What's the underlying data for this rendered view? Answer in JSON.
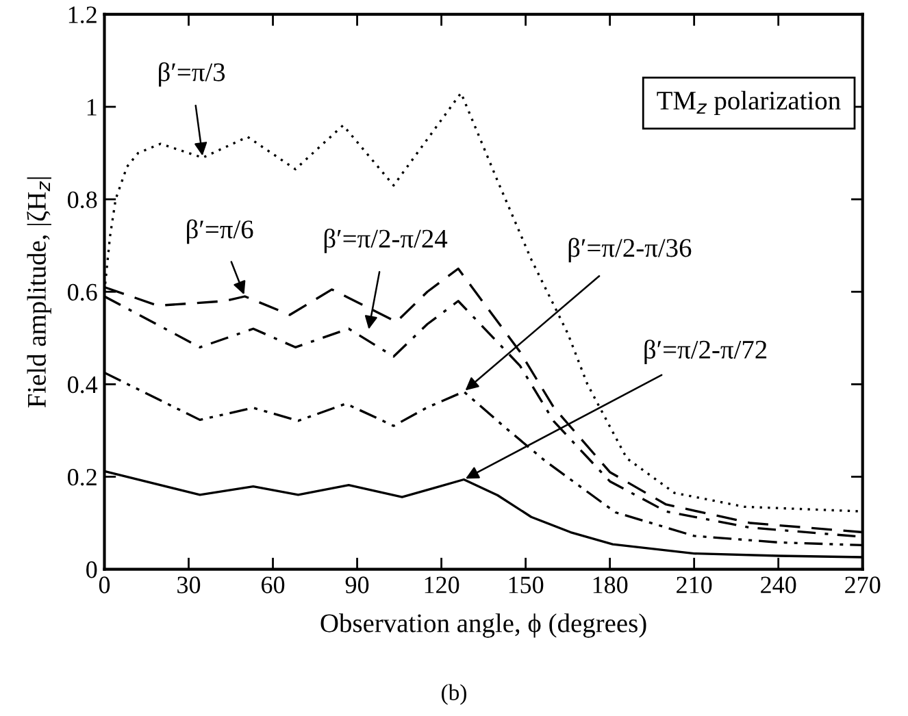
{
  "chart_data": {
    "type": "line",
    "xlabel": "Observation angle, ϕ (degrees)",
    "ylabel": "Field amplitude, |ζH$_{z}$|",
    "xlim": [
      0,
      270
    ],
    "ylim": [
      0,
      1.2
    ],
    "xticks": [
      0,
      30,
      60,
      90,
      120,
      150,
      180,
      210,
      240,
      270
    ],
    "yticks": [
      0,
      0.2,
      0.4,
      0.6,
      0.8,
      1,
      1.2
    ],
    "grid": false,
    "legend": false,
    "marker": "none",
    "annotations": [
      "TM$_{z}$ polarization",
      "(b)"
    ],
    "series": [
      {
        "name": "β′=π/3",
        "color": "#000000",
        "line_style": "dotted",
        "x": [
          0,
          2,
          4,
          8,
          12,
          20,
          35,
          51,
          68,
          85,
          103,
          115,
          127,
          140,
          152,
          165,
          172,
          186,
          203,
          228,
          270
        ],
        "values": [
          0.6,
          0.72,
          0.8,
          0.87,
          0.9,
          0.92,
          0.89,
          0.935,
          0.865,
          0.96,
          0.83,
          0.93,
          1.03,
          0.84,
          0.67,
          0.51,
          0.4,
          0.24,
          0.165,
          0.135,
          0.125
        ]
      },
      {
        "name": "β′=π/6",
        "color": "#000000",
        "line_style": "dashed",
        "x": [
          0,
          19,
          43,
          50,
          66,
          81,
          104,
          115,
          126,
          148,
          160,
          180,
          200,
          230,
          270
        ],
        "values": [
          0.61,
          0.57,
          0.58,
          0.59,
          0.55,
          0.605,
          0.535,
          0.6,
          0.65,
          0.47,
          0.35,
          0.21,
          0.14,
          0.1,
          0.08
        ]
      },
      {
        "name": "β′=π/2-π/24",
        "color": "#000000",
        "line_style": "dashdot",
        "x": [
          0,
          34,
          53,
          68,
          87,
          103,
          115,
          126,
          148,
          160,
          180,
          200,
          230,
          270
        ],
        "values": [
          0.59,
          0.48,
          0.52,
          0.48,
          0.52,
          0.46,
          0.53,
          0.58,
          0.44,
          0.32,
          0.19,
          0.125,
          0.09,
          0.07
        ]
      },
      {
        "name": "β′=π/2-π/36",
        "color": "#000000",
        "line_style": "dashdotdot",
        "x": [
          0,
          34,
          53,
          69,
          86,
          103,
          115,
          128,
          143,
          157,
          182,
          210,
          240,
          270
        ],
        "values": [
          0.425,
          0.323,
          0.349,
          0.321,
          0.358,
          0.31,
          0.35,
          0.384,
          0.305,
          0.234,
          0.123,
          0.072,
          0.058,
          0.052
        ]
      },
      {
        "name": "β′=π/2-π/72",
        "color": "#000000",
        "line_style": "solid",
        "x": [
          0,
          34,
          53,
          69,
          87,
          106,
          117,
          128,
          140,
          152,
          166,
          181,
          210,
          240,
          270
        ],
        "values": [
          0.212,
          0.161,
          0.179,
          0.161,
          0.182,
          0.156,
          0.175,
          0.194,
          0.16,
          0.113,
          0.08,
          0.054,
          0.034,
          0.029,
          0.026
        ]
      }
    ]
  }
}
